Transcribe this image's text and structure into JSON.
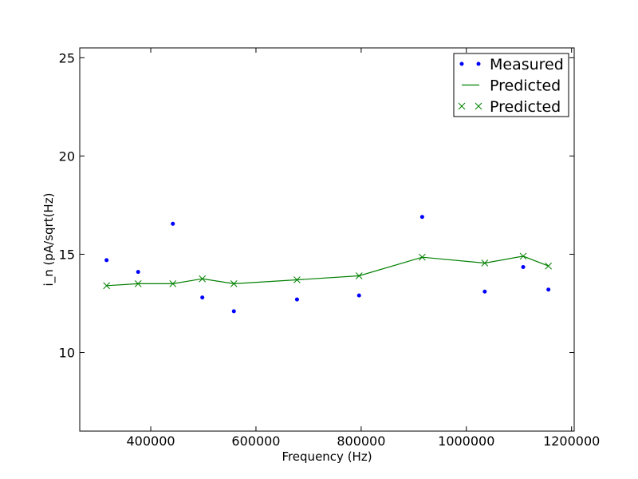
{
  "chart_data": {
    "type": "scatter",
    "title": "",
    "xlabel": "Frequency (Hz)",
    "ylabel": "i_n (pA/sqrt(Hz)",
    "xlim": [
      265000,
      1205000
    ],
    "ylim": [
      6,
      25.5
    ],
    "x_ticks": [
      400000,
      600000,
      800000,
      1000000,
      1200000
    ],
    "y_ticks": [
      10,
      15,
      20,
      25
    ],
    "grid": false,
    "legend_position": "top-right",
    "series": [
      {
        "name": "Measured",
        "kind": "points",
        "color": "#0000ff",
        "x": [
          316000,
          376000,
          442000,
          498000,
          558000,
          678000,
          796000,
          916000,
          1035000,
          1108000,
          1156000
        ],
        "y": [
          14.7,
          14.1,
          16.55,
          12.8,
          12.1,
          12.7,
          12.9,
          16.9,
          13.1,
          14.35,
          13.2
        ]
      },
      {
        "name": "Predicted",
        "kind": "line",
        "color": "#008000",
        "x": [
          316000,
          376000,
          442000,
          498000,
          558000,
          678000,
          796000,
          916000,
          1035000,
          1108000,
          1156000
        ],
        "y": [
          13.4,
          13.5,
          13.5,
          13.75,
          13.5,
          13.7,
          13.9,
          14.85,
          14.55,
          14.9,
          14.4
        ]
      },
      {
        "name": "Predicted",
        "kind": "x-markers",
        "color": "#008000",
        "x": [
          316000,
          376000,
          442000,
          498000,
          558000,
          678000,
          796000,
          916000,
          1035000,
          1108000,
          1156000
        ],
        "y": [
          13.4,
          13.5,
          13.5,
          13.75,
          13.5,
          13.7,
          13.9,
          14.85,
          14.55,
          14.9,
          14.4
        ]
      }
    ]
  }
}
